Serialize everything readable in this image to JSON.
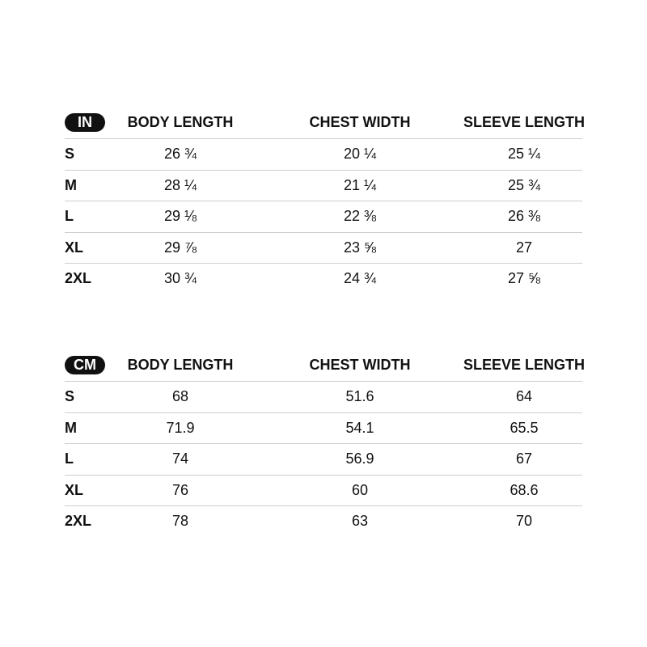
{
  "columns": [
    "BODY LENGTH",
    "CHEST WIDTH",
    "SLEEVE LENGTH"
  ],
  "tables": [
    {
      "unit": "IN",
      "rows": [
        {
          "size": "S",
          "values": [
            "26 ¾",
            "20 ¼",
            "25 ¼"
          ]
        },
        {
          "size": "M",
          "values": [
            "28 ¼",
            "21 ¼",
            "25 ¾"
          ]
        },
        {
          "size": "L",
          "values": [
            "29 ⅛",
            "22 ⅜",
            "26 ⅜"
          ]
        },
        {
          "size": "XL",
          "values": [
            "29 ⅞",
            "23 ⅝",
            "27"
          ]
        },
        {
          "size": "2XL",
          "values": [
            "30 ¾",
            "24 ¾",
            "27 ⅝"
          ]
        }
      ]
    },
    {
      "unit": "CM",
      "rows": [
        {
          "size": "S",
          "values": [
            "68",
            "51.6",
            "64"
          ]
        },
        {
          "size": "M",
          "values": [
            "71.9",
            "54.1",
            "65.5"
          ]
        },
        {
          "size": "L",
          "values": [
            "74",
            "56.9",
            "67"
          ]
        },
        {
          "size": "XL",
          "values": [
            "76",
            "60",
            "68.6"
          ]
        },
        {
          "size": "2XL",
          "values": [
            "78",
            "63",
            "70"
          ]
        }
      ]
    }
  ]
}
